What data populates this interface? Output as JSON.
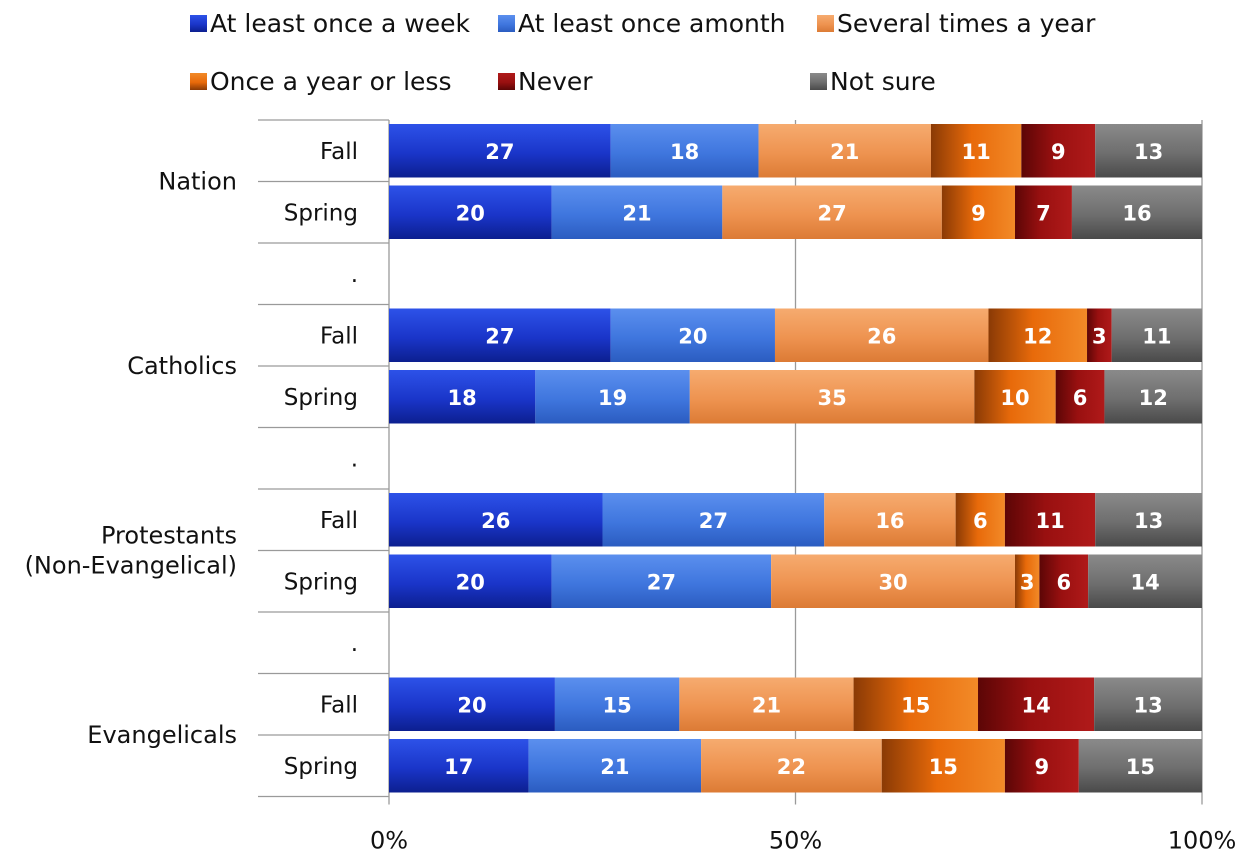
{
  "chart_data": {
    "type": "bar",
    "orientation": "horizontal",
    "stacked": "percent",
    "title": "",
    "xlabel": "",
    "ylabel": "",
    "xlim": [
      0,
      100
    ],
    "x_ticks": [
      "0%",
      "50%",
      "100%"
    ],
    "x_tick_values": [
      0,
      50,
      100
    ],
    "grid": true,
    "legend_position": "top",
    "series": [
      {
        "name": "At least once a week",
        "color": "#1a35c9",
        "colorLight": "#2d52e8",
        "colorDark": "#0c1f8f"
      },
      {
        "name": "At least once amonth",
        "color": "#3f76de",
        "colorLight": "#5b8fee",
        "colorDark": "#2b5cc0"
      },
      {
        "name": "Several times a year",
        "color": "#ee9350",
        "colorLight": "#f6ab6f",
        "colorDark": "#dc7b35"
      },
      {
        "name": "Once a year or less",
        "color": "#e86a0a",
        "colorLight": "#f28a28",
        "colorDark": "#8a3a05"
      },
      {
        "name": "Never",
        "color": "#991010",
        "colorLight": "#b01a1a",
        "colorDark": "#5c0606"
      },
      {
        "name": "Not sure",
        "color": "#6e6e6e",
        "colorLight": "#8a8a8a",
        "colorDark": "#4a4a4a"
      }
    ],
    "groups": [
      {
        "label": "Nation",
        "label_lines": [
          "Nation"
        ],
        "rows": [
          {
            "label": "Fall",
            "values": [
              27,
              18,
              21,
              11,
              9,
              13
            ]
          },
          {
            "label": "Spring",
            "values": [
              20,
              21,
              27,
              9,
              7,
              16
            ]
          },
          {
            "label": ".",
            "values": []
          }
        ]
      },
      {
        "label": "Catholics",
        "label_lines": [
          "Catholics"
        ],
        "rows": [
          {
            "label": "Fall",
            "values": [
              27,
              20,
              26,
              12,
              3,
              11
            ]
          },
          {
            "label": "Spring",
            "values": [
              18,
              19,
              35,
              10,
              6,
              12
            ]
          },
          {
            "label": ".",
            "values": []
          }
        ]
      },
      {
        "label": "Protestants (Non-Evangelical)",
        "label_lines": [
          "Protestants",
          "(Non-Evangelical)"
        ],
        "rows": [
          {
            "label": "Fall",
            "values": [
              26,
              27,
              16,
              6,
              11,
              13
            ]
          },
          {
            "label": "Spring",
            "values": [
              20,
              27,
              30,
              3,
              6,
              14
            ]
          },
          {
            "label": ".",
            "values": []
          }
        ]
      },
      {
        "label": "Evangelicals",
        "label_lines": [
          "Evangelicals"
        ],
        "rows": [
          {
            "label": "Fall",
            "values": [
              20,
              15,
              21,
              15,
              14,
              13
            ]
          },
          {
            "label": "Spring",
            "values": [
              17,
              21,
              22,
              15,
              9,
              15
            ]
          }
        ]
      }
    ]
  }
}
